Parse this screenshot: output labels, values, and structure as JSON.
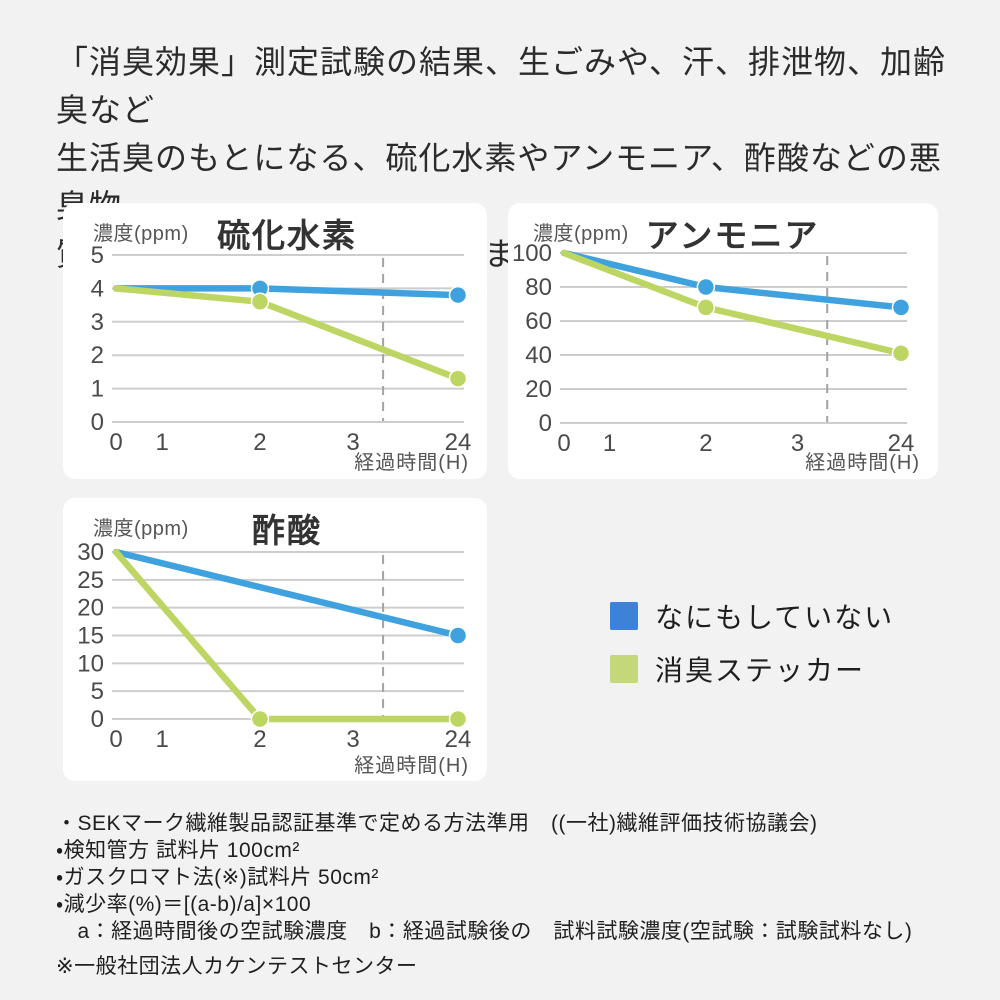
{
  "heading": {
    "lines": [
      "「消臭効果」測定試験の結果、生ごみや、汗、排泄物、加齢臭など",
      "生活臭のもとになる、硫化水素やアンモニア、酢酸などの悪臭物",
      "質に対して消臭効果を発揮しました。"
    ]
  },
  "colors": {
    "background": "#f2f2f2",
    "card": "#ffffff",
    "line_blue": "#3fa2de",
    "line_green": "#bdd563",
    "legend_blue": "#3b82d8",
    "legend_green": "#c3d878",
    "grid": "#cdcdcd",
    "dashed": "#a3a3a3",
    "text_dark": "#2b2b2b",
    "text_axis": "#4a4a4a"
  },
  "chart_data": [
    {
      "type": "line",
      "title": "硫化水素",
      "ylabel": "濃度(ppm)",
      "xlabel": "経過時間(H)",
      "x_ticks": [
        0,
        1,
        2,
        3,
        24
      ],
      "y_ticks": [
        5,
        4,
        3,
        2,
        1,
        0
      ],
      "ylim": [
        0,
        5
      ],
      "grid": true,
      "axis_break_line": true,
      "series": [
        {
          "name": "なにもしていない",
          "color_key": "blue",
          "points": [
            [
              0,
              4
            ],
            [
              2,
              4
            ],
            [
              24,
              3.8
            ]
          ],
          "markers": [
            2,
            24
          ]
        },
        {
          "name": "消臭ステッカー",
          "color_key": "green",
          "points": [
            [
              0,
              4
            ],
            [
              2,
              3.6
            ],
            [
              24,
              1.3
            ]
          ],
          "markers": [
            2,
            24
          ]
        }
      ]
    },
    {
      "type": "line",
      "title": "アンモニア",
      "ylabel": "濃度(ppm)",
      "xlabel": "経過時間(H)",
      "x_ticks": [
        0,
        1,
        2,
        3,
        24
      ],
      "y_ticks": [
        100,
        80,
        60,
        40,
        20,
        0
      ],
      "ylim": [
        0,
        100
      ],
      "grid": true,
      "axis_break_line": true,
      "series": [
        {
          "name": "なにもしていない",
          "color_key": "blue",
          "points": [
            [
              0,
              100
            ],
            [
              2,
              80
            ],
            [
              24,
              68
            ]
          ],
          "markers": [
            2,
            24
          ]
        },
        {
          "name": "消臭ステッカー",
          "color_key": "green",
          "points": [
            [
              0,
              100
            ],
            [
              2,
              68
            ],
            [
              24,
              41
            ]
          ],
          "markers": [
            2,
            24
          ]
        }
      ]
    },
    {
      "type": "line",
      "title": "酢酸",
      "ylabel": "濃度(ppm)",
      "xlabel": "経過時間(H)",
      "x_ticks": [
        0,
        1,
        2,
        3,
        24
      ],
      "y_ticks": [
        30,
        25,
        20,
        15,
        10,
        5,
        0
      ],
      "ylim": [
        0,
        30
      ],
      "grid": true,
      "axis_break_line": true,
      "series": [
        {
          "name": "なにもしていない",
          "color_key": "blue",
          "points": [
            [
              0,
              30
            ],
            [
              24,
              15
            ]
          ],
          "markers": [
            24
          ]
        },
        {
          "name": "消臭ステッカー",
          "color_key": "green",
          "points": [
            [
              0,
              30
            ],
            [
              2,
              0
            ],
            [
              24,
              0
            ]
          ],
          "markers": [
            2,
            24
          ]
        }
      ]
    }
  ],
  "legend": {
    "items": [
      {
        "label": "なにもしていない",
        "color": "#3b82d8"
      },
      {
        "label": "消臭ステッカー",
        "color": "#c3d878"
      }
    ]
  },
  "footnotes": {
    "items": [
      "・SEKマーク繊維製品認証基準で定める方法準用　((一社)繊維評価技術協議会)",
      "・検知管方 試料片 100cm²",
      "・ガスクロマト法(※)試料片 50cm²",
      "・減少率(%)＝[(a-b)/a]×100",
      "　a：経過時間後の空試験濃度　b：経過試験後の　試料試験濃度(空試験：試験試料なし)"
    ],
    "source": "※一般社団法人カケンテストセンター"
  }
}
